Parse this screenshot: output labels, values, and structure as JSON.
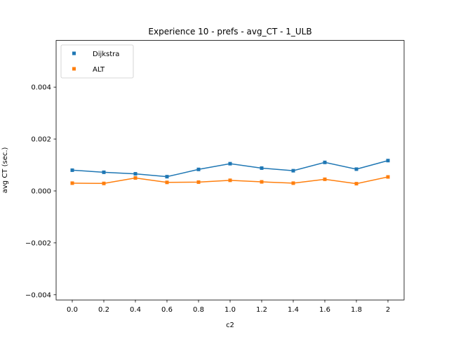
{
  "chart_data": {
    "type": "line",
    "title": "Experience 10 - prefs - avg_CT - 1_ULB",
    "xlabel": "c2",
    "ylabel": "avg CT (sec.)",
    "categories": [
      "0.0",
      "0.2",
      "0.4",
      "0.6",
      "0.8",
      "1.0",
      "1.2",
      "1.4",
      "1.6",
      "1.8",
      "2"
    ],
    "ylim": [
      -0.0042,
      0.0058
    ],
    "yticks": [
      -0.004,
      -0.002,
      0.0,
      0.002,
      0.004
    ],
    "ytick_labels": [
      "−0.004",
      "−0.002",
      "0.000",
      "0.002",
      "0.004"
    ],
    "grid": false,
    "legend_position": "top-left",
    "series": [
      {
        "name": "Dijkstra",
        "color": "#1f77b4",
        "marker": "square",
        "values": [
          0.0008,
          0.00072,
          0.00066,
          0.00055,
          0.00083,
          0.00105,
          0.00088,
          0.00078,
          0.0011,
          0.00084,
          0.00117
        ]
      },
      {
        "name": "ALT",
        "color": "#ff7f0e",
        "marker": "square",
        "values": [
          0.0003,
          0.00029,
          0.0005,
          0.00033,
          0.00034,
          0.00041,
          0.00035,
          0.0003,
          0.00045,
          0.00028,
          0.00054
        ]
      }
    ]
  }
}
